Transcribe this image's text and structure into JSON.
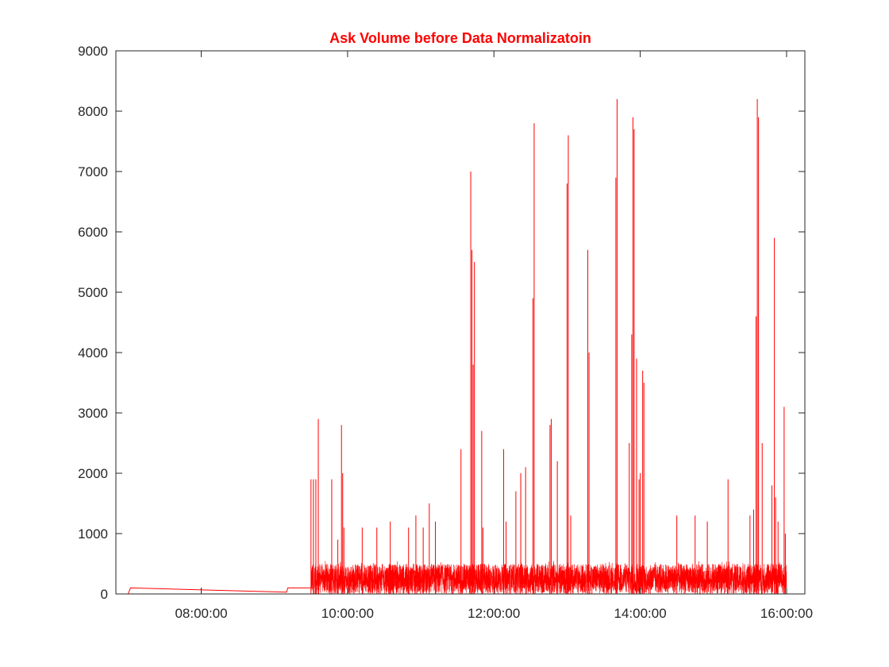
{
  "chart_data": {
    "type": "line",
    "title": "Ask Volume before Data Normalizatoin",
    "xlabel": "",
    "ylabel": "",
    "xlim": [
      "06:50:00",
      "16:15:00"
    ],
    "ylim": [
      0,
      9000
    ],
    "x_ticks": [
      "08:00:00",
      "10:00:00",
      "12:00:00",
      "14:00:00",
      "16:00:00"
    ],
    "y_ticks": [
      0,
      1000,
      2000,
      3000,
      4000,
      5000,
      6000,
      7000,
      8000,
      9000
    ],
    "grid": false,
    "line_color": "#ff0000",
    "series": [
      {
        "x": [
          "07:00:00",
          "07:02:00",
          "09:10:00",
          "09:11:00",
          "09:30:00"
        ],
        "values": [
          0,
          100,
          30,
          100,
          100
        ]
      }
    ],
    "dense_noise": {
      "x_range": [
        "09:30:00",
        "16:00:00"
      ],
      "baseline": [
        0,
        500
      ],
      "typical_max": 550
    },
    "spikes": [
      {
        "x": "09:30:00",
        "y": 1900
      },
      {
        "x": "09:32:00",
        "y": 1900
      },
      {
        "x": "09:34:00",
        "y": 1900
      },
      {
        "x": "09:36:00",
        "y": 2900
      },
      {
        "x": "09:47:00",
        "y": 1900
      },
      {
        "x": "09:52:00",
        "y": 900
      },
      {
        "x": "09:55:00",
        "y": 2800
      },
      {
        "x": "09:56:00",
        "y": 2000
      },
      {
        "x": "09:57:00",
        "y": 1100
      },
      {
        "x": "10:12:00",
        "y": 1100
      },
      {
        "x": "10:24:00",
        "y": 1100
      },
      {
        "x": "10:35:00",
        "y": 1200
      },
      {
        "x": "10:50:00",
        "y": 1100
      },
      {
        "x": "10:56:00",
        "y": 1300
      },
      {
        "x": "11:02:00",
        "y": 1100
      },
      {
        "x": "11:07:00",
        "y": 1500
      },
      {
        "x": "11:12:00",
        "y": 1200
      },
      {
        "x": "11:33:00",
        "y": 2400
      },
      {
        "x": "11:41:00",
        "y": 7000
      },
      {
        "x": "11:42:00",
        "y": 5700
      },
      {
        "x": "11:43:00",
        "y": 3800
      },
      {
        "x": "11:44:00",
        "y": 5500
      },
      {
        "x": "11:50:00",
        "y": 2700
      },
      {
        "x": "11:51:00",
        "y": 1100
      },
      {
        "x": "12:08:00",
        "y": 2400
      },
      {
        "x": "12:10:00",
        "y": 1200
      },
      {
        "x": "12:18:00",
        "y": 1700
      },
      {
        "x": "12:22:00",
        "y": 2000
      },
      {
        "x": "12:26:00",
        "y": 2100
      },
      {
        "x": "12:32:00",
        "y": 4900
      },
      {
        "x": "12:33:00",
        "y": 7800
      },
      {
        "x": "12:46:00",
        "y": 2800
      },
      {
        "x": "12:47:00",
        "y": 2900
      },
      {
        "x": "12:52:00",
        "y": 2200
      },
      {
        "x": "13:00:00",
        "y": 6800
      },
      {
        "x": "13:01:00",
        "y": 7600
      },
      {
        "x": "13:03:00",
        "y": 1300
      },
      {
        "x": "13:17:00",
        "y": 5700
      },
      {
        "x": "13:18:00",
        "y": 4000
      },
      {
        "x": "13:40:00",
        "y": 6900
      },
      {
        "x": "13:41:00",
        "y": 8200
      },
      {
        "x": "13:51:00",
        "y": 2500
      },
      {
        "x": "13:53:00",
        "y": 4300
      },
      {
        "x": "13:54:00",
        "y": 7900
      },
      {
        "x": "13:55:00",
        "y": 7700
      },
      {
        "x": "13:57:00",
        "y": 3900
      },
      {
        "x": "13:59:00",
        "y": 1900
      },
      {
        "x": "14:00:00",
        "y": 2000
      },
      {
        "x": "14:02:00",
        "y": 3700
      },
      {
        "x": "14:03:00",
        "y": 3500
      },
      {
        "x": "14:30:00",
        "y": 1300
      },
      {
        "x": "14:45:00",
        "y": 1300
      },
      {
        "x": "14:55:00",
        "y": 1200
      },
      {
        "x": "15:12:00",
        "y": 1900
      },
      {
        "x": "15:30:00",
        "y": 1300
      },
      {
        "x": "15:33:00",
        "y": 1400
      },
      {
        "x": "15:35:00",
        "y": 4600
      },
      {
        "x": "15:36:00",
        "y": 8200
      },
      {
        "x": "15:37:00",
        "y": 7900
      },
      {
        "x": "15:40:00",
        "y": 2500
      },
      {
        "x": "15:48:00",
        "y": 1800
      },
      {
        "x": "15:50:00",
        "y": 5900
      },
      {
        "x": "15:51:00",
        "y": 1600
      },
      {
        "x": "15:53:00",
        "y": 1200
      },
      {
        "x": "15:58:00",
        "y": 3100
      },
      {
        "x": "15:59:00",
        "y": 1000
      }
    ]
  }
}
